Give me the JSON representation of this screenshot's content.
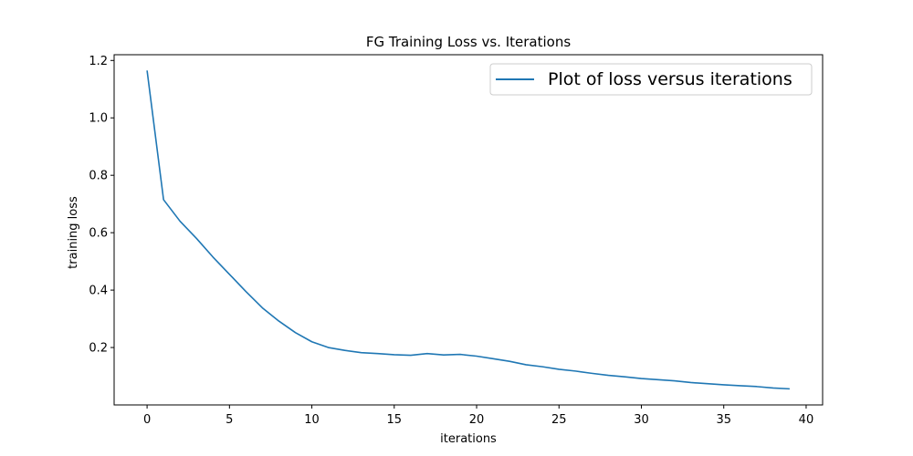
{
  "chart_data": {
    "type": "line",
    "title": "FG Training Loss vs. Iterations",
    "xlabel": "iterations",
    "ylabel": "training loss",
    "xlim": [
      -2,
      41
    ],
    "ylim": [
      0.0,
      1.22
    ],
    "xticks": [
      0,
      5,
      10,
      15,
      20,
      25,
      30,
      35,
      40
    ],
    "yticks": [
      0.2,
      0.4,
      0.6,
      0.8,
      1.0,
      1.2
    ],
    "ytick_labels": [
      "0.2",
      "0.4",
      "0.6",
      "0.8",
      "1.0",
      "1.2"
    ],
    "grid": false,
    "legend_position": "top-right",
    "series": [
      {
        "name": "Plot of loss versus iterations",
        "color": "#1f77b4",
        "x": [
          0,
          1,
          2,
          3,
          4,
          5,
          6,
          7,
          8,
          9,
          10,
          11,
          12,
          13,
          14,
          15,
          16,
          17,
          18,
          19,
          20,
          21,
          22,
          23,
          24,
          25,
          26,
          27,
          28,
          29,
          30,
          31,
          32,
          33,
          34,
          35,
          36,
          37,
          38,
          39
        ],
        "y": [
          1.165,
          0.715,
          0.64,
          0.58,
          0.515,
          0.455,
          0.395,
          0.338,
          0.292,
          0.252,
          0.22,
          0.2,
          0.19,
          0.182,
          0.179,
          0.175,
          0.173,
          0.179,
          0.174,
          0.176,
          0.17,
          0.161,
          0.152,
          0.14,
          0.133,
          0.124,
          0.118,
          0.11,
          0.103,
          0.098,
          0.092,
          0.088,
          0.084,
          0.078,
          0.074,
          0.07,
          0.067,
          0.064,
          0.059,
          0.056
        ]
      }
    ]
  }
}
